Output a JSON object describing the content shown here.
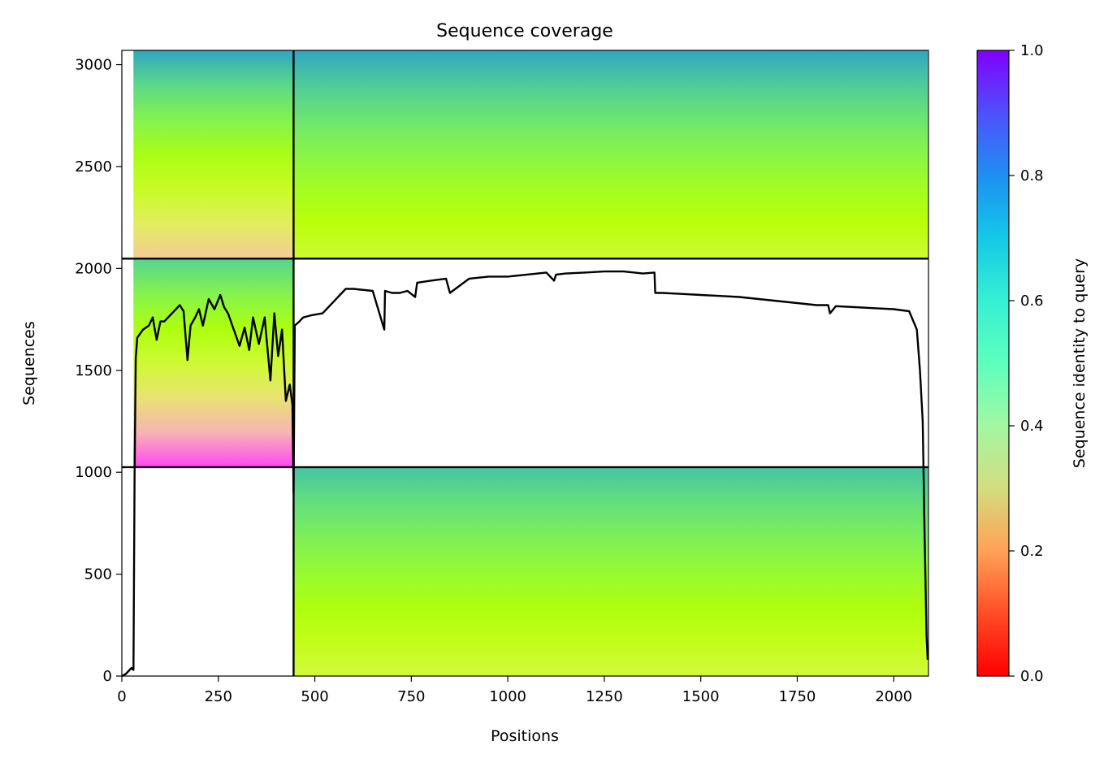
{
  "chart_data": {
    "type": "heatmap",
    "title": "Sequence coverage",
    "xlabel": "Positions",
    "ylabel": "Sequences",
    "xlim": [
      0,
      2090
    ],
    "ylim": [
      0,
      3070
    ],
    "x_ticks": [
      0,
      250,
      500,
      750,
      1000,
      1250,
      1500,
      1750,
      2000
    ],
    "y_ticks": [
      0,
      500,
      1000,
      1500,
      2000,
      2500,
      3000
    ],
    "colorbar": {
      "label": "Sequence identity to query",
      "colormap": "rainbow_r",
      "range": [
        0.0,
        1.0
      ],
      "ticks": [
        0.0,
        0.2,
        0.4,
        0.6,
        0.8,
        1.0
      ],
      "tick_labels": [
        "0.0",
        "0.2",
        "0.4",
        "0.6",
        "0.8",
        "1.0"
      ]
    },
    "blocks": [
      {
        "x": [
          30,
          445
        ],
        "y": [
          2048,
          3070
        ],
        "identity_bottom": 0.2,
        "identity_top": 0.88
      },
      {
        "x": [
          445,
          2088
        ],
        "y": [
          2048,
          3070
        ],
        "identity_bottom": 0.4,
        "identity_top": 0.88
      },
      {
        "x": [
          30,
          445
        ],
        "y": [
          1025,
          2048
        ],
        "identity_bottom": 0.02,
        "identity_top": 0.78
      },
      {
        "x": [
          445,
          2088
        ],
        "y": [
          0,
          1025
        ],
        "identity_bottom": 0.38,
        "identity_top": 0.82
      }
    ],
    "block_boundaries": {
      "x": 445,
      "y": [
        1025,
        2048
      ]
    },
    "coverage": {
      "x": [
        0,
        10,
        25,
        30,
        33,
        36,
        40,
        55,
        70,
        80,
        90,
        100,
        110,
        130,
        150,
        160,
        170,
        178,
        190,
        200,
        210,
        225,
        240,
        255,
        265,
        275,
        290,
        305,
        318,
        330,
        340,
        355,
        370,
        385,
        395,
        405,
        415,
        425,
        435,
        442,
        445,
        448,
        460,
        470,
        490,
        520,
        580,
        600,
        650,
        680,
        682,
        700,
        720,
        740,
        760,
        765,
        800,
        840,
        850,
        900,
        950,
        1000,
        1050,
        1100,
        1120,
        1125,
        1150,
        1200,
        1250,
        1300,
        1350,
        1380,
        1382,
        1400,
        1450,
        1500,
        1550,
        1600,
        1650,
        1700,
        1750,
        1800,
        1830,
        1835,
        1850,
        1900,
        1950,
        2000,
        2040,
        2060,
        2068,
        2075,
        2080,
        2085,
        2088
      ],
      "y": [
        0,
        10,
        40,
        30,
        1000,
        1560,
        1660,
        1700,
        1720,
        1760,
        1650,
        1740,
        1740,
        1780,
        1820,
        1790,
        1550,
        1720,
        1760,
        1800,
        1720,
        1850,
        1800,
        1870,
        1810,
        1780,
        1700,
        1620,
        1710,
        1600,
        1760,
        1630,
        1760,
        1450,
        1780,
        1570,
        1700,
        1350,
        1430,
        1330,
        900,
        1720,
        1740,
        1760,
        1770,
        1780,
        1900,
        1900,
        1890,
        1700,
        1890,
        1880,
        1880,
        1890,
        1860,
        1930,
        1940,
        1950,
        1880,
        1950,
        1960,
        1960,
        1970,
        1980,
        1940,
        1970,
        1975,
        1980,
        1985,
        1985,
        1975,
        1980,
        1880,
        1880,
        1875,
        1870,
        1865,
        1860,
        1850,
        1840,
        1830,
        1820,
        1820,
        1780,
        1815,
        1810,
        1805,
        1800,
        1790,
        1700,
        1500,
        1250,
        700,
        200,
        80
      ]
    }
  }
}
